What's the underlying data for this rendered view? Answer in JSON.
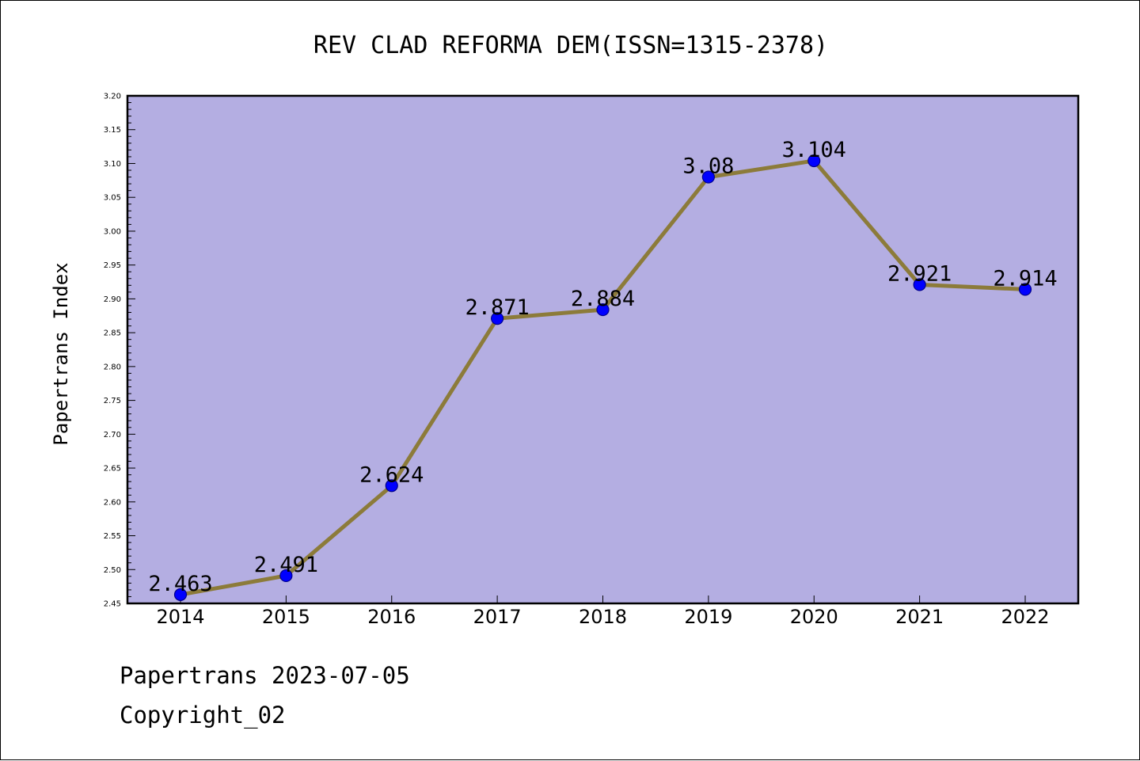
{
  "chart_data": {
    "type": "line",
    "title": "REV CLAD REFORMA DEM(ISSN=1315-2378)",
    "xlabel": "",
    "ylabel": "Papertrans Index",
    "categories": [
      "2014",
      "2015",
      "2016",
      "2017",
      "2018",
      "2019",
      "2020",
      "2021",
      "2022"
    ],
    "series": [
      {
        "values": [
          2.463,
          2.491,
          2.624,
          2.871,
          2.884,
          3.08,
          3.104,
          2.921,
          2.914
        ]
      }
    ],
    "data_labels": [
      "2.463",
      "2.491",
      "2.624",
      "2.871",
      "2.884",
      "3.08",
      "3.104",
      "2.921",
      "2.914"
    ],
    "ylim": [
      2.45,
      3.2
    ],
    "y_ticks": [
      "2.45",
      "2.50",
      "2.55",
      "2.60",
      "2.65",
      "2.70",
      "2.75",
      "2.80",
      "2.85",
      "2.90",
      "2.95",
      "3.00",
      "3.05",
      "3.10",
      "3.15",
      "3.20"
    ],
    "grid": false,
    "legend": "none",
    "colors": {
      "plot_background": "#b4aee2",
      "line": "#8c7b3a",
      "marker": "#0000ff",
      "marker_edge": "#00008b"
    }
  },
  "footer": {
    "line1": "Papertrans 2023-07-05",
    "line2": "Copyright_02"
  }
}
